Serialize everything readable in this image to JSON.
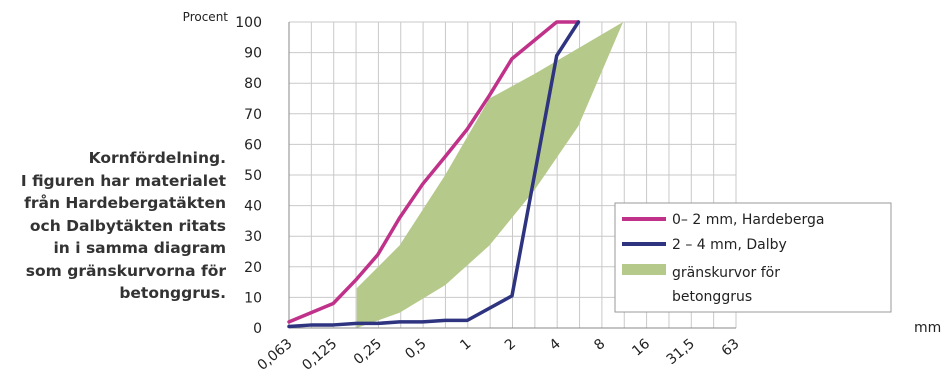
{
  "caption": {
    "lines": [
      "Kornfördelning.",
      "I figuren har materialet",
      "från Hardebergatäkten",
      "och Dalbytäkten ritats",
      "in i samma diagram",
      "som gränskurvorna för",
      "betonggrus."
    ]
  },
  "chart_data": {
    "type": "line",
    "ylabel": "Procent",
    "xlabel": "mm",
    "x_categories": [
      "0,063",
      "0,125",
      "0,25",
      "0,5",
      "1",
      "2",
      "4",
      "8",
      "16",
      "31,5",
      "63"
    ],
    "y_ticks": [
      0,
      10,
      20,
      30,
      40,
      50,
      60,
      70,
      80,
      90,
      100
    ],
    "ylim": [
      0,
      100
    ],
    "grid": true,
    "legend_position": "right",
    "series": [
      {
        "name": "0– 2 mm, Hardeberga",
        "color": "#c0318a",
        "points": [
          {
            "x": 0.063,
            "y": 2
          },
          {
            "x": 0.125,
            "y": 8
          },
          {
            "x": 0.18,
            "y": 16
          },
          {
            "x": 0.25,
            "y": 24
          },
          {
            "x": 0.35,
            "y": 36
          },
          {
            "x": 0.5,
            "y": 47
          },
          {
            "x": 0.71,
            "y": 56
          },
          {
            "x": 1,
            "y": 65
          },
          {
            "x": 1.41,
            "y": 76
          },
          {
            "x": 2,
            "y": 88
          },
          {
            "x": 2.83,
            "y": 94
          },
          {
            "x": 4,
            "y": 100
          },
          {
            "x": 5.6,
            "y": 100
          }
        ]
      },
      {
        "name": "2 – 4 mm, Dalby",
        "color": "#2e3480",
        "points": [
          {
            "x": 0.063,
            "y": 0.5
          },
          {
            "x": 0.09,
            "y": 1
          },
          {
            "x": 0.125,
            "y": 1
          },
          {
            "x": 0.18,
            "y": 1.5
          },
          {
            "x": 0.25,
            "y": 1.5
          },
          {
            "x": 0.35,
            "y": 2
          },
          {
            "x": 0.5,
            "y": 2
          },
          {
            "x": 0.71,
            "y": 2.5
          },
          {
            "x": 1,
            "y": 2.5
          },
          {
            "x": 2,
            "y": 10.5
          },
          {
            "x": 4,
            "y": 89
          },
          {
            "x": 5.6,
            "y": 100
          }
        ]
      }
    ],
    "band": {
      "name": "gränskurvor för betonggrus",
      "color": "#b5c98a",
      "upper": [
        {
          "x": 0.18,
          "y": 13
        },
        {
          "x": 0.35,
          "y": 27
        },
        {
          "x": 0.71,
          "y": 50
        },
        {
          "x": 1.41,
          "y": 75
        },
        {
          "x": 2.83,
          "y": 83
        },
        {
          "x": 11.2,
          "y": 100
        }
      ],
      "lower": [
        {
          "x": 0.18,
          "y": 0
        },
        {
          "x": 0.35,
          "y": 5
        },
        {
          "x": 0.71,
          "y": 14
        },
        {
          "x": 1.41,
          "y": 27
        },
        {
          "x": 2.83,
          "y": 45
        },
        {
          "x": 5.6,
          "y": 66
        },
        {
          "x": 11.2,
          "y": 100
        }
      ]
    },
    "legend": [
      {
        "label": "0– 2 mm, Hardeberga",
        "color": "#c0318a",
        "kind": "line"
      },
      {
        "label": "2 – 4 mm, Dalby",
        "color": "#2e3480",
        "kind": "line"
      },
      {
        "label_lines": [
          "gränskurvor för",
          "betonggrus"
        ],
        "color": "#b5c98a",
        "kind": "area"
      }
    ]
  }
}
